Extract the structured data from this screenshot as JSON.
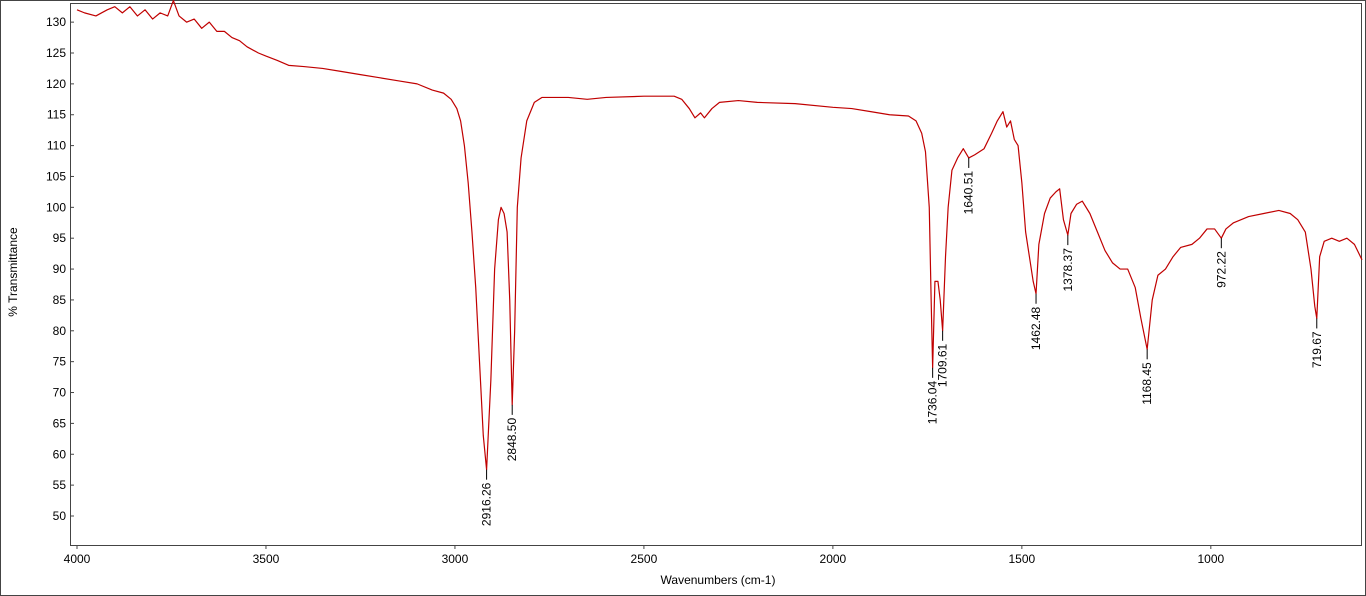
{
  "chart_data": {
    "type": "line",
    "x_label": "Wavenumbers (cm-1)",
    "y_label": "% Transmittance",
    "color": "#c00000",
    "xlim": [
      4000,
      600
    ],
    "ylim": [
      45.3,
      133.1
    ],
    "xticks": [
      4000,
      3500,
      3000,
      2500,
      2000,
      1500,
      1000
    ],
    "yticks": [
      50,
      55,
      60,
      65,
      70,
      75,
      80,
      85,
      90,
      95,
      100,
      105,
      110,
      115,
      120,
      125,
      130
    ],
    "x": [
      4000,
      3980,
      3950,
      3920,
      3900,
      3880,
      3860,
      3840,
      3820,
      3800,
      3780,
      3760,
      3745,
      3730,
      3710,
      3690,
      3670,
      3650,
      3630,
      3610,
      3590,
      3570,
      3550,
      3520,
      3500,
      3470,
      3440,
      3400,
      3350,
      3300,
      3250,
      3200,
      3150,
      3100,
      3060,
      3030,
      3010,
      2995,
      2985,
      2975,
      2965,
      2955,
      2945,
      2935,
      2925,
      2916.26,
      2905,
      2895,
      2885,
      2878,
      2870,
      2862,
      2855,
      2848.5,
      2842,
      2835,
      2825,
      2810,
      2790,
      2770,
      2700,
      2650,
      2600,
      2500,
      2420,
      2400,
      2380,
      2365,
      2350,
      2340,
      2320,
      2300,
      2250,
      2200,
      2100,
      2000,
      1950,
      1900,
      1850,
      1800,
      1780,
      1765,
      1755,
      1745,
      1740,
      1736.04,
      1730,
      1722,
      1716,
      1709.61,
      1702,
      1695,
      1685,
      1670,
      1655,
      1640.51,
      1625,
      1600,
      1580,
      1565,
      1550,
      1540,
      1530,
      1520,
      1510,
      1500,
      1490,
      1480,
      1470,
      1462.48,
      1455,
      1440,
      1425,
      1410,
      1400,
      1390,
      1378.37,
      1370,
      1355,
      1340,
      1320,
      1300,
      1280,
      1260,
      1240,
      1220,
      1200,
      1185,
      1168.45,
      1155,
      1140,
      1120,
      1100,
      1080,
      1050,
      1030,
      1010,
      990,
      972.22,
      960,
      940,
      900,
      860,
      820,
      790,
      770,
      750,
      735,
      725,
      719.67,
      712,
      700,
      680,
      660,
      640,
      620,
      600
    ],
    "values": [
      132,
      131.5,
      131,
      132,
      132.5,
      131.5,
      132.5,
      131,
      132,
      130.5,
      131.5,
      131,
      133.5,
      131,
      130,
      130.5,
      129,
      130,
      128.5,
      128.5,
      127.5,
      127,
      126,
      125,
      124.5,
      123.8,
      123,
      122.8,
      122.5,
      122,
      121.5,
      121,
      120.5,
      120,
      119,
      118.5,
      117.5,
      116,
      114,
      110,
      104,
      96,
      87,
      75,
      63,
      57.5,
      72,
      90,
      98,
      100,
      99,
      96,
      85,
      68,
      80,
      100,
      108,
      114,
      117,
      117.8,
      117.8,
      117.5,
      117.8,
      118,
      118,
      117.5,
      116,
      114.5,
      115.3,
      114.5,
      116,
      117,
      117.3,
      117,
      116.8,
      116.2,
      116,
      115.5,
      115,
      114.8,
      114,
      112,
      109,
      100,
      85,
      74,
      88,
      88,
      85,
      80,
      92,
      100,
      106,
      108,
      109.5,
      108,
      108.5,
      109.5,
      112,
      114,
      115.5,
      113,
      114,
      111,
      110,
      104,
      96,
      92,
      88,
      86,
      94,
      99,
      101.5,
      102.5,
      103,
      98,
      95.5,
      99,
      100.5,
      101,
      99,
      96,
      93,
      91,
      90,
      90,
      87,
      82,
      77,
      85,
      89,
      90,
      92,
      93.5,
      94,
      95,
      96.5,
      96.5,
      95,
      96.5,
      97.5,
      98.5,
      99,
      99.5,
      99,
      98,
      96,
      90,
      84,
      82,
      92,
      94.5,
      95,
      94.5,
      95,
      94,
      91.5
    ],
    "annotations": [
      {
        "x": 2916.26,
        "y": 57.5,
        "label": "2916.26"
      },
      {
        "x": 2848.5,
        "y": 68,
        "label": "2848.50"
      },
      {
        "x": 1736.04,
        "y": 74,
        "label": "1736.04"
      },
      {
        "x": 1709.61,
        "y": 80,
        "label": "1709.61"
      },
      {
        "x": 1640.51,
        "y": 108,
        "label": "1640.51"
      },
      {
        "x": 1462.48,
        "y": 86,
        "label": "1462.48"
      },
      {
        "x": 1378.37,
        "y": 95.5,
        "label": "1378.37"
      },
      {
        "x": 1168.45,
        "y": 77,
        "label": "1168.45"
      },
      {
        "x": 972.22,
        "y": 95,
        "label": "972.22"
      },
      {
        "x": 719.67,
        "y": 82,
        "label": "719.67"
      }
    ]
  }
}
